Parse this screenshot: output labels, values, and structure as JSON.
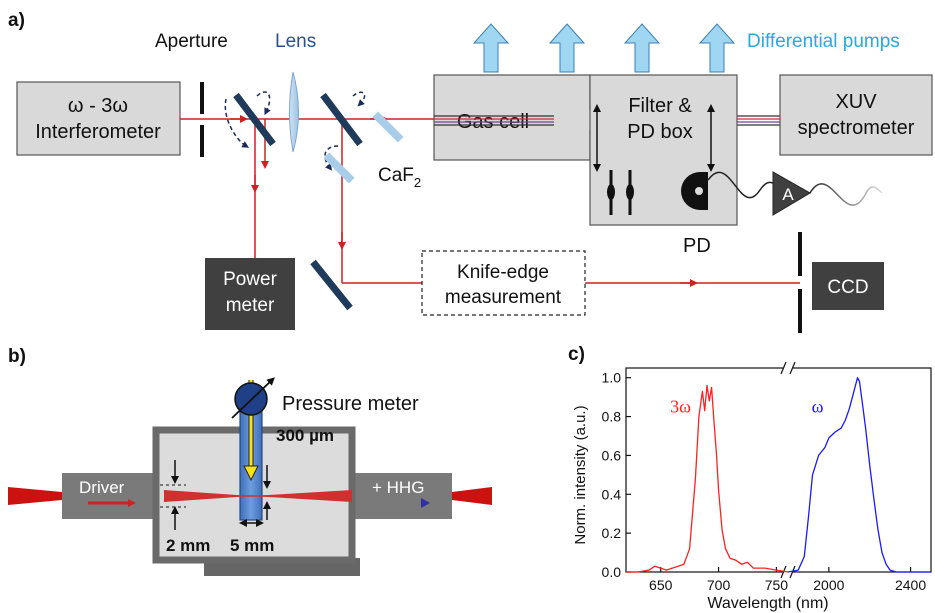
{
  "panel_a": {
    "label": "a)",
    "aperture": "Aperture",
    "lens": "Lens",
    "differential_pumps": "Differential pumps",
    "interferometer": [
      "ω - 3ω",
      "Interferometer"
    ],
    "caf2_base": "CaF",
    "caf2_sub": "2",
    "gas_cell": "Gas cell",
    "filter_box": [
      "Filter &",
      "PD box"
    ],
    "xuv": [
      "XUV",
      "spectrometer"
    ],
    "amp": "A",
    "pd": "PD",
    "power_meter": [
      "Power",
      "meter"
    ],
    "knife_edge": [
      "Knife-edge",
      "measurement"
    ],
    "ccd": "CCD",
    "colors": {
      "beam": "#cc2222",
      "pump_arrow": "#9fd6f2",
      "pump_text": "#29a9e0",
      "lens_text": "#2b4f8f",
      "box_fill": "#d9d9d9",
      "dark_box": "#404040"
    }
  },
  "panel_b": {
    "label": "b)",
    "pressure_meter": "Pressure meter",
    "dim_300": "300 µm",
    "driver": "Driver",
    "hhg": "+ HHG",
    "dim_2mm": "2 mm",
    "dim_5mm": "5 mm"
  },
  "chart_data": {
    "type": "line",
    "panel_label": "c)",
    "xlabel": "Wavelength (nm)",
    "ylabel": "Norm. intensity (a.u.)",
    "broken_x_axis": true,
    "segments": [
      {
        "xlim": [
          620,
          760
        ],
        "ticks": [
          650,
          700,
          750
        ]
      },
      {
        "xlim": [
          1800,
          2500
        ],
        "ticks": [
          2000,
          2400
        ]
      }
    ],
    "ylim": [
      0,
      1.05
    ],
    "yticks": [
      "0.0",
      "0.2",
      "0.4",
      "0.6",
      "0.8",
      "1.0"
    ],
    "series": [
      {
        "name": "3ω",
        "color": "#ff2020",
        "x": [
          620,
          630,
          640,
          645,
          650,
          655,
          660,
          665,
          670,
          675,
          680,
          683,
          686,
          688,
          690,
          692,
          694,
          696,
          698,
          700,
          703,
          706,
          710,
          715,
          720,
          725,
          730,
          740,
          750,
          760
        ],
        "y": [
          0.0,
          0.0,
          0.01,
          0.03,
          0.02,
          0.01,
          0.02,
          0.03,
          0.04,
          0.12,
          0.48,
          0.8,
          0.93,
          0.83,
          0.96,
          0.88,
          0.95,
          0.78,
          0.62,
          0.42,
          0.22,
          0.12,
          0.07,
          0.06,
          0.04,
          0.05,
          0.02,
          0.02,
          0.01,
          0.0
        ]
      },
      {
        "name": "ω",
        "color": "#1a1aff",
        "x": [
          1800,
          1850,
          1880,
          1900,
          1920,
          1950,
          1980,
          2000,
          2030,
          2060,
          2080,
          2100,
          2120,
          2140,
          2150,
          2165,
          2180,
          2200,
          2220,
          2240,
          2260,
          2280,
          2300,
          2330,
          2400,
          2500
        ],
        "y": [
          0.0,
          0.01,
          0.08,
          0.28,
          0.5,
          0.6,
          0.64,
          0.69,
          0.72,
          0.74,
          0.78,
          0.84,
          0.92,
          1.0,
          0.98,
          0.86,
          0.74,
          0.55,
          0.38,
          0.22,
          0.1,
          0.04,
          0.01,
          0.0,
          0.0,
          0.0
        ]
      }
    ]
  }
}
